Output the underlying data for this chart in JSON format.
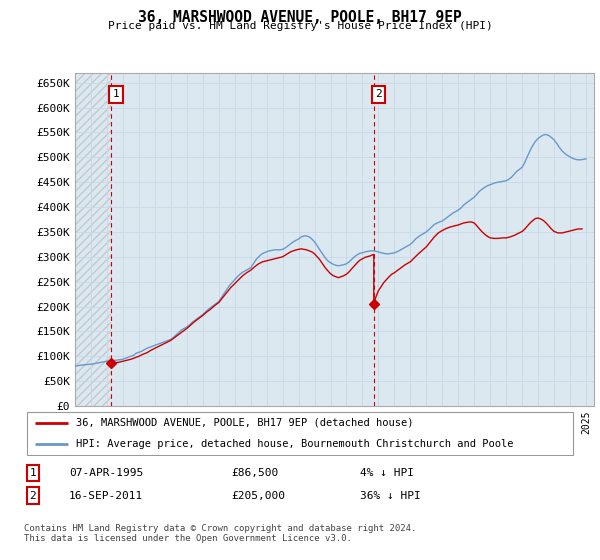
{
  "title": "36, MARSHWOOD AVENUE, POOLE, BH17 9EP",
  "subtitle": "Price paid vs. HM Land Registry's House Price Index (HPI)",
  "legend_line1": "36, MARSHWOOD AVENUE, POOLE, BH17 9EP (detached house)",
  "legend_line2": "HPI: Average price, detached house, Bournemouth Christchurch and Poole",
  "annotation1_date": "07-APR-1995",
  "annotation1_price": "£86,500",
  "annotation1_hpi": "4% ↓ HPI",
  "annotation2_date": "16-SEP-2011",
  "annotation2_price": "£205,000",
  "annotation2_hpi": "36% ↓ HPI",
  "footnote": "Contains HM Land Registry data © Crown copyright and database right 2024.\nThis data is licensed under the Open Government Licence v3.0.",
  "ylim": [
    0,
    670000
  ],
  "yticks": [
    0,
    50000,
    100000,
    150000,
    200000,
    250000,
    300000,
    350000,
    400000,
    450000,
    500000,
    550000,
    600000,
    650000
  ],
  "ytick_labels": [
    "£0",
    "£50K",
    "£100K",
    "£150K",
    "£200K",
    "£250K",
    "£300K",
    "£350K",
    "£400K",
    "£450K",
    "£500K",
    "£550K",
    "£600K",
    "£650K"
  ],
  "price_paid_color": "#cc0000",
  "hpi_color": "#6699cc",
  "annotation_box_color": "#cc0000",
  "grid_color": "#c8d8e8",
  "bg_color": "#dce8f0",
  "purchase1_x": 1995.27,
  "purchase1_y": 86500,
  "purchase2_x": 2011.71,
  "purchase2_y": 205000,
  "xlim_left": 1993.0,
  "xlim_right": 2025.5,
  "hpi_x": [
    1993.0,
    1993.08,
    1993.17,
    1993.25,
    1993.33,
    1993.42,
    1993.5,
    1993.58,
    1993.67,
    1993.75,
    1993.83,
    1993.92,
    1994.0,
    1994.08,
    1994.17,
    1994.25,
    1994.33,
    1994.42,
    1994.5,
    1994.58,
    1994.67,
    1994.75,
    1994.83,
    1994.92,
    1995.0,
    1995.08,
    1995.17,
    1995.25,
    1995.33,
    1995.42,
    1995.5,
    1995.58,
    1995.67,
    1995.75,
    1995.83,
    1995.92,
    1996.0,
    1996.08,
    1996.17,
    1996.25,
    1996.33,
    1996.42,
    1996.5,
    1996.58,
    1996.67,
    1996.75,
    1996.83,
    1996.92,
    1997.0,
    1997.17,
    1997.33,
    1997.5,
    1997.67,
    1997.83,
    1998.0,
    1998.17,
    1998.33,
    1998.5,
    1998.67,
    1998.83,
    1999.0,
    1999.17,
    1999.33,
    1999.5,
    1999.67,
    1999.83,
    2000.0,
    2000.17,
    2000.33,
    2000.5,
    2000.67,
    2000.83,
    2001.0,
    2001.17,
    2001.33,
    2001.5,
    2001.67,
    2001.83,
    2002.0,
    2002.17,
    2002.33,
    2002.5,
    2002.67,
    2002.83,
    2003.0,
    2003.17,
    2003.33,
    2003.5,
    2003.67,
    2003.83,
    2004.0,
    2004.17,
    2004.33,
    2004.5,
    2004.67,
    2004.83,
    2005.0,
    2005.17,
    2005.33,
    2005.5,
    2005.67,
    2005.83,
    2006.0,
    2006.17,
    2006.33,
    2006.5,
    2006.67,
    2006.83,
    2007.0,
    2007.17,
    2007.33,
    2007.5,
    2007.67,
    2007.83,
    2008.0,
    2008.17,
    2008.33,
    2008.5,
    2008.67,
    2008.83,
    2009.0,
    2009.17,
    2009.33,
    2009.5,
    2009.67,
    2009.83,
    2010.0,
    2010.17,
    2010.33,
    2010.5,
    2010.67,
    2010.83,
    2011.0,
    2011.17,
    2011.33,
    2011.5,
    2011.67,
    2011.83,
    2012.0,
    2012.17,
    2012.33,
    2012.5,
    2012.67,
    2012.83,
    2013.0,
    2013.17,
    2013.33,
    2013.5,
    2013.67,
    2013.83,
    2014.0,
    2014.17,
    2014.33,
    2014.5,
    2014.67,
    2014.83,
    2015.0,
    2015.17,
    2015.33,
    2015.5,
    2015.67,
    2015.83,
    2016.0,
    2016.17,
    2016.33,
    2016.5,
    2016.67,
    2016.83,
    2017.0,
    2017.17,
    2017.33,
    2017.5,
    2017.67,
    2017.83,
    2018.0,
    2018.17,
    2018.33,
    2018.5,
    2018.67,
    2018.83,
    2019.0,
    2019.17,
    2019.33,
    2019.5,
    2019.67,
    2019.83,
    2020.0,
    2020.17,
    2020.33,
    2020.5,
    2020.67,
    2020.83,
    2021.0,
    2021.17,
    2021.33,
    2021.5,
    2021.67,
    2021.83,
    2022.0,
    2022.17,
    2022.33,
    2022.5,
    2022.67,
    2022.83,
    2023.0,
    2023.17,
    2023.33,
    2023.5,
    2023.67,
    2023.83,
    2024.0,
    2024.17,
    2024.33,
    2024.5,
    2024.67,
    2024.83,
    2025.0
  ],
  "hpi_y": [
    80000,
    80500,
    81000,
    81500,
    82000,
    82000,
    82500,
    83000,
    83000,
    83500,
    83500,
    84000,
    84000,
    84500,
    85000,
    85500,
    86000,
    86500,
    87000,
    87500,
    88000,
    88500,
    89000,
    89500,
    90000,
    90500,
    91000,
    91500,
    91000,
    91500,
    92000,
    92000,
    92500,
    93000,
    93000,
    93500,
    94000,
    95000,
    96000,
    97000,
    98000,
    99000,
    100000,
    101000,
    102000,
    104000,
    106000,
    107000,
    108000,
    110000,
    113000,
    116000,
    118000,
    120000,
    122000,
    124000,
    126000,
    128000,
    130000,
    132000,
    134000,
    138000,
    143000,
    148000,
    153000,
    156000,
    159000,
    163000,
    168000,
    172000,
    176000,
    180000,
    184000,
    189000,
    194000,
    198000,
    202000,
    206000,
    210000,
    218000,
    226000,
    234000,
    242000,
    248000,
    254000,
    260000,
    265000,
    269000,
    272000,
    275000,
    278000,
    286000,
    294000,
    300000,
    305000,
    308000,
    310000,
    312000,
    313000,
    314000,
    314000,
    314000,
    315000,
    318000,
    322000,
    326000,
    330000,
    333000,
    336000,
    340000,
    342000,
    342000,
    340000,
    336000,
    330000,
    322000,
    314000,
    306000,
    298000,
    292000,
    288000,
    285000,
    283000,
    282000,
    283000,
    284000,
    286000,
    290000,
    295000,
    300000,
    304000,
    307000,
    308000,
    310000,
    311000,
    312000,
    312000,
    311000,
    310000,
    308000,
    307000,
    306000,
    306000,
    307000,
    308000,
    310000,
    313000,
    316000,
    319000,
    322000,
    325000,
    330000,
    336000,
    340000,
    344000,
    347000,
    350000,
    355000,
    360000,
    365000,
    368000,
    370000,
    372000,
    376000,
    380000,
    384000,
    388000,
    391000,
    394000,
    398000,
    404000,
    408000,
    412000,
    416000,
    420000,
    426000,
    432000,
    436000,
    440000,
    443000,
    445000,
    447000,
    449000,
    450000,
    451000,
    452000,
    453000,
    456000,
    460000,
    466000,
    472000,
    476000,
    480000,
    490000,
    502000,
    514000,
    524000,
    532000,
    538000,
    542000,
    545000,
    546000,
    544000,
    540000,
    535000,
    528000,
    520000,
    513000,
    508000,
    504000,
    501000,
    498000,
    496000,
    495000,
    495000,
    496000,
    497000
  ],
  "pp_x": [
    1995.27,
    1995.5,
    1995.75,
    1996.0,
    1996.25,
    1996.5,
    1996.75,
    1997.0,
    1997.25,
    1997.5,
    1997.75,
    1998.0,
    1998.25,
    1998.5,
    1998.75,
    1999.0,
    1999.25,
    1999.5,
    1999.75,
    2000.0,
    2000.25,
    2000.5,
    2000.75,
    2001.0,
    2001.25,
    2001.5,
    2001.75,
    2002.0,
    2002.25,
    2002.5,
    2002.75,
    2003.0,
    2003.25,
    2003.5,
    2003.75,
    2004.0,
    2004.25,
    2004.5,
    2004.75,
    2005.0,
    2005.25,
    2005.5,
    2005.75,
    2006.0,
    2006.25,
    2006.5,
    2006.75,
    2007.0,
    2007.17,
    2007.33,
    2007.5,
    2007.67,
    2007.83,
    2008.0,
    2008.17,
    2008.33,
    2008.5,
    2008.67,
    2008.83,
    2009.0,
    2009.17,
    2009.33,
    2009.5,
    2009.67,
    2009.83,
    2010.0,
    2010.17,
    2010.33,
    2010.5,
    2010.67,
    2010.83,
    2011.0,
    2011.17,
    2011.5,
    2011.71,
    2011.71,
    2011.83,
    2012.0,
    2012.17,
    2012.33,
    2012.5,
    2012.67,
    2012.83,
    2013.0,
    2013.17,
    2013.33,
    2013.5,
    2013.67,
    2013.83,
    2014.0,
    2014.25,
    2014.5,
    2014.75,
    2015.0,
    2015.25,
    2015.5,
    2015.75,
    2016.0,
    2016.25,
    2016.5,
    2016.75,
    2017.0,
    2017.17,
    2017.33,
    2017.5,
    2017.67,
    2017.83,
    2018.0,
    2018.17,
    2018.33,
    2018.5,
    2018.67,
    2018.83,
    2019.0,
    2019.25,
    2019.5,
    2019.75,
    2020.0,
    2020.25,
    2020.5,
    2020.75,
    2021.0,
    2021.17,
    2021.33,
    2021.5,
    2021.67,
    2021.83,
    2022.0,
    2022.17,
    2022.33,
    2022.5,
    2022.67,
    2022.83,
    2023.0,
    2023.25,
    2023.5,
    2023.75,
    2024.0,
    2024.25,
    2024.5,
    2024.75
  ],
  "pp_y": [
    86500,
    87000,
    88000,
    90000,
    92000,
    94000,
    97000,
    100000,
    104000,
    107000,
    112000,
    116000,
    120000,
    124000,
    128000,
    132000,
    138000,
    144000,
    150000,
    156000,
    163000,
    170000,
    176000,
    182000,
    189000,
    195000,
    202000,
    208000,
    218000,
    228000,
    238000,
    246000,
    254000,
    262000,
    268000,
    273000,
    280000,
    286000,
    290000,
    292000,
    294000,
    296000,
    298000,
    300000,
    305000,
    310000,
    313000,
    315000,
    316000,
    315000,
    314000,
    312000,
    310000,
    306000,
    300000,
    294000,
    286000,
    278000,
    272000,
    266000,
    262000,
    260000,
    258000,
    260000,
    262000,
    265000,
    270000,
    276000,
    282000,
    288000,
    293000,
    296000,
    299000,
    302000,
    305000,
    205000,
    218000,
    232000,
    240000,
    248000,
    254000,
    260000,
    265000,
    268000,
    272000,
    276000,
    280000,
    284000,
    287000,
    290000,
    298000,
    306000,
    313000,
    320000,
    330000,
    340000,
    348000,
    353000,
    357000,
    360000,
    362000,
    364000,
    366000,
    368000,
    369000,
    370000,
    370000,
    368000,
    362000,
    356000,
    350000,
    345000,
    341000,
    338000,
    337000,
    337000,
    338000,
    338000,
    340000,
    343000,
    347000,
    351000,
    356000,
    362000,
    368000,
    373000,
    377000,
    378000,
    376000,
    373000,
    368000,
    362000,
    356000,
    351000,
    348000,
    348000,
    350000,
    352000,
    354000,
    356000,
    356000
  ]
}
